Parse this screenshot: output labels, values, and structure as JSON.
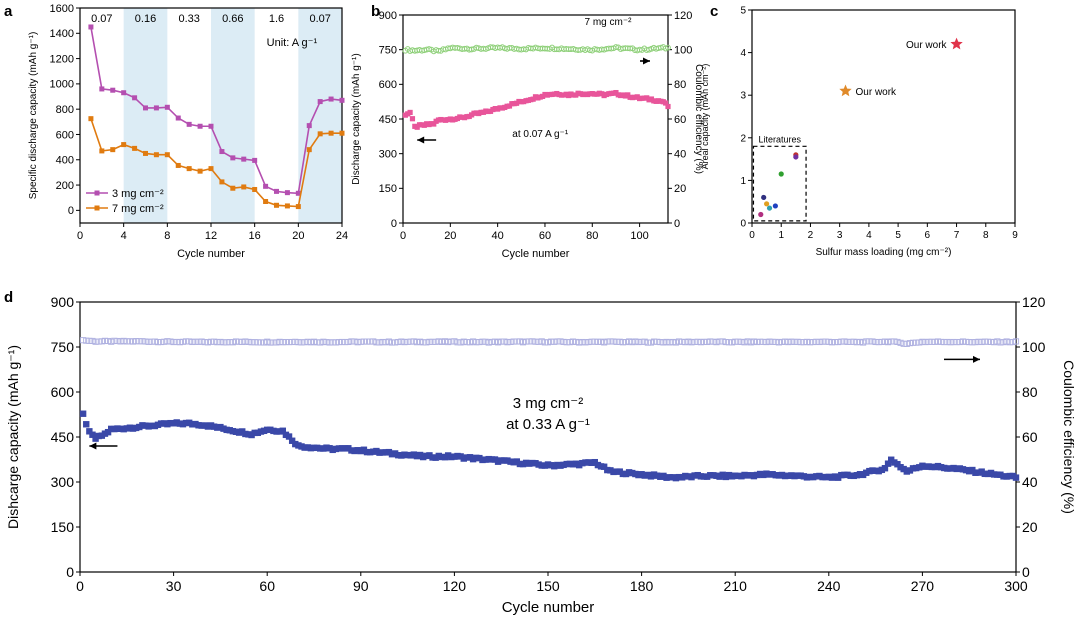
{
  "chart_data": [
    {
      "panel": "a",
      "type": "line",
      "xlabel": "Cycle number",
      "ylabel": "Specific discharge capacity (mAh g⁻¹)",
      "xlim": [
        0,
        24
      ],
      "ylim": [
        -100,
        1600
      ],
      "xticks": [
        0,
        4,
        8,
        12,
        16,
        20,
        24
      ],
      "yticks": [
        0,
        200,
        400,
        600,
        800,
        1000,
        1200,
        1400,
        1600
      ],
      "grid": false,
      "legend_position": "bottom-left",
      "annotation": "Unit: A g⁻¹",
      "rate_labels": [
        "0.07",
        "0.16",
        "0.33",
        "0.66",
        "1.6",
        "0.07"
      ],
      "shaded_bands": [
        [
          4,
          8
        ],
        [
          12,
          16
        ],
        [
          20,
          24
        ]
      ],
      "series": [
        {
          "name": "3 mg cm⁻²",
          "color": "#b44fb0",
          "marker": "square",
          "x": [
            1,
            2,
            3,
            4,
            5,
            6,
            7,
            8,
            9,
            10,
            11,
            12,
            13,
            14,
            15,
            16,
            17,
            18,
            19,
            20,
            21,
            22,
            23,
            24
          ],
          "y": [
            1450,
            960,
            950,
            930,
            890,
            810,
            810,
            815,
            730,
            680,
            665,
            665,
            465,
            415,
            405,
            395,
            190,
            150,
            140,
            135,
            670,
            860,
            880,
            870
          ]
        },
        {
          "name": "7 mg cm⁻²",
          "color": "#e07b10",
          "marker": "square",
          "x": [
            1,
            2,
            3,
            4,
            5,
            6,
            7,
            8,
            9,
            10,
            11,
            12,
            13,
            14,
            15,
            16,
            17,
            18,
            19,
            20,
            21,
            22,
            23,
            24
          ],
          "y": [
            725,
            470,
            480,
            520,
            490,
            450,
            440,
            440,
            355,
            330,
            310,
            330,
            225,
            175,
            185,
            165,
            70,
            40,
            35,
            30,
            480,
            605,
            610,
            610
          ]
        }
      ]
    },
    {
      "panel": "b",
      "type": "scatter",
      "xlabel": "Cycle number",
      "ylabel": "Discharge capacity (mAh g⁻¹)",
      "y2label": "Coulombic efficiency (%)",
      "xlim": [
        0,
        112
      ],
      "ylim": [
        0,
        900
      ],
      "y2lim": [
        0,
        120
      ],
      "xticks": [
        0,
        20,
        40,
        60,
        80,
        100
      ],
      "yticks": [
        0,
        150,
        300,
        450,
        600,
        750,
        900
      ],
      "y2ticks": [
        0,
        20,
        40,
        60,
        80,
        100,
        120
      ],
      "annotations": [
        "7 mg cm⁻²",
        "at 0.07 A g⁻¹"
      ],
      "series": [
        {
          "name": "Discharge capacity",
          "axis": "left",
          "color": "#e8559a",
          "x": [
            1,
            3,
            5,
            7,
            10,
            13,
            15,
            20,
            25,
            30,
            35,
            40,
            45,
            50,
            55,
            60,
            65,
            70,
            75,
            80,
            85,
            90,
            95,
            100,
            105,
            110,
            112
          ],
          "y": [
            470,
            478,
            415,
            420,
            425,
            430,
            445,
            450,
            455,
            470,
            480,
            495,
            510,
            525,
            540,
            555,
            560,
            555,
            560,
            560,
            555,
            560,
            550,
            540,
            535,
            525,
            505
          ]
        },
        {
          "name": "Coulombic efficiency",
          "axis": "right",
          "color": "#8fd07a",
          "x": [
            1,
            5,
            10,
            15,
            20,
            30,
            40,
            50,
            60,
            70,
            80,
            90,
            100,
            110,
            112
          ],
          "y": [
            100,
            99.5,
            100,
            99,
            101,
            100.5,
            101,
            100.5,
            101,
            100.5,
            100,
            101,
            100,
            101,
            101
          ]
        }
      ]
    },
    {
      "panel": "c",
      "type": "scatter",
      "xlabel": "Sulfur mass loading (mg cm⁻²)",
      "ylabel": "Areal capacity (mAh cm⁻²)",
      "xlim": [
        0,
        9
      ],
      "ylim": [
        0,
        5
      ],
      "xticks": [
        0,
        1,
        2,
        3,
        4,
        5,
        6,
        7,
        8,
        9
      ],
      "yticks": [
        0,
        1,
        2,
        3,
        4,
        5
      ],
      "box_label": "Literatures",
      "series": [
        {
          "name": "Our work",
          "marker": "star",
          "color": "#e0334a",
          "x": [
            7
          ],
          "y": [
            4.2
          ]
        },
        {
          "name": "Our work",
          "marker": "star",
          "color": "#e08a2a",
          "x": [
            3.2
          ],
          "y": [
            3.1
          ]
        },
        {
          "name": "Literatures",
          "marker": "dot",
          "colors": [
            "#c03030",
            "#30a030",
            "#303080",
            "#b03080",
            "#30a0b0",
            "#e0a020",
            "#7030a0",
            "#2040c0"
          ],
          "x": [
            1.5,
            1.0,
            0.4,
            0.3,
            0.6,
            0.5,
            1.5,
            0.8
          ],
          "y": [
            1.6,
            1.15,
            0.6,
            0.2,
            0.35,
            0.45,
            1.55,
            0.4
          ]
        }
      ]
    },
    {
      "panel": "d",
      "type": "scatter",
      "xlabel": "Cycle number",
      "ylabel": "Dishcarge capacity (mAh g⁻¹)",
      "y2label": "Coulombic efficiency (%)",
      "xlim": [
        0,
        300
      ],
      "ylim": [
        0,
        900
      ],
      "y2lim": [
        0,
        120
      ],
      "xticks": [
        0,
        30,
        60,
        90,
        120,
        150,
        180,
        210,
        240,
        270,
        300
      ],
      "yticks": [
        0,
        150,
        300,
        450,
        600,
        750,
        900
      ],
      "y2ticks": [
        0,
        20,
        40,
        60,
        80,
        100,
        120
      ],
      "annotations": [
        "3 mg cm⁻²",
        "at 0.33 A g⁻¹"
      ],
      "series": [
        {
          "name": "Discharge capacity",
          "axis": "left",
          "color": "#3a48a8",
          "x": [
            1,
            3,
            5,
            8,
            10,
            15,
            20,
            25,
            30,
            35,
            40,
            45,
            50,
            55,
            60,
            65,
            68,
            70,
            75,
            80,
            85,
            90,
            100,
            110,
            120,
            130,
            140,
            150,
            160,
            165,
            170,
            180,
            190,
            200,
            210,
            220,
            230,
            240,
            250,
            258,
            260,
            265,
            270,
            280,
            290,
            300
          ],
          "y": [
            525,
            465,
            445,
            460,
            475,
            480,
            485,
            490,
            495,
            495,
            490,
            480,
            470,
            460,
            475,
            470,
            440,
            420,
            415,
            410,
            410,
            405,
            395,
            385,
            385,
            375,
            365,
            355,
            360,
            365,
            335,
            325,
            315,
            320,
            320,
            325,
            320,
            315,
            325,
            345,
            375,
            335,
            355,
            345,
            330,
            315
          ]
        },
        {
          "name": "Coulombic efficiency",
          "axis": "right",
          "color": "#aeb0e0",
          "x": [
            1,
            5,
            10,
            20,
            30,
            40,
            50,
            60,
            70,
            80,
            90,
            100,
            110,
            120,
            130,
            140,
            150,
            160,
            170,
            180,
            190,
            200,
            210,
            220,
            230,
            240,
            250,
            260,
            265,
            270,
            280,
            290,
            300
          ],
          "y": [
            103,
            102.5,
            102.5,
            102.5,
            102.3,
            102.2,
            102.3,
            102.2,
            102.3,
            102.2,
            102.3,
            102.2,
            102.3,
            102.3,
            102.2,
            102.3,
            102.3,
            102.2,
            102.3,
            102.2,
            102.2,
            102.3,
            102.2,
            102.3,
            102.2,
            102.3,
            102.2,
            102.4,
            101.5,
            102.3,
            102.3,
            102.2,
            102.3
          ]
        }
      ]
    }
  ]
}
